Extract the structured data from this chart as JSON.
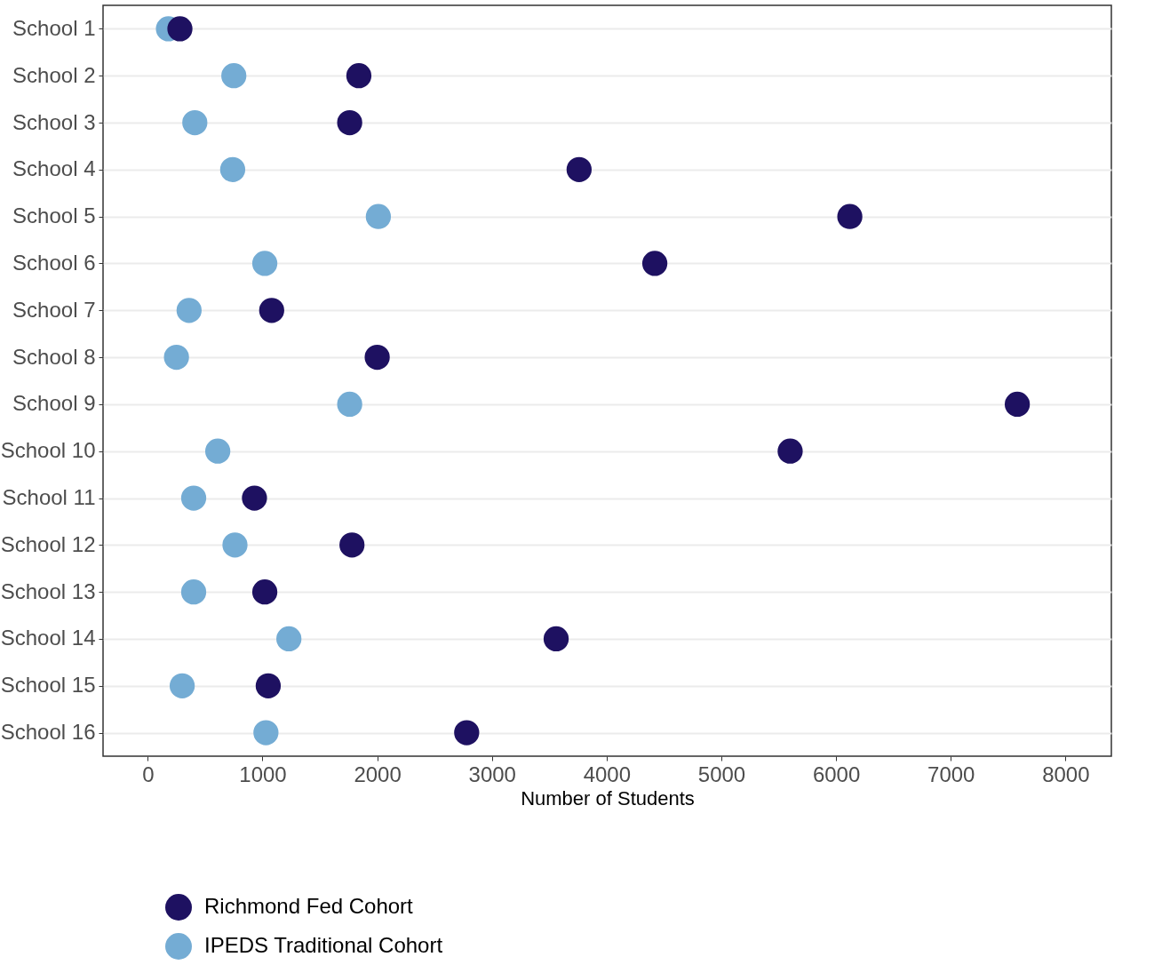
{
  "chart_data": {
    "type": "scatter",
    "orientation": "horizontal",
    "xlabel": "Number of Students",
    "categories": [
      "School 1",
      "School 2",
      "School 3",
      "School 4",
      "School 5",
      "School 6",
      "School 7",
      "School 8",
      "School 9",
      "School 10",
      "School 11",
      "School 12",
      "School 13",
      "School 14",
      "School 15",
      "School 16"
    ],
    "series": [
      {
        "name": "Richmond Fed Cohort",
        "color": "#1e1161",
        "values": [
          280,
          1840,
          1760,
          3760,
          6120,
          4420,
          1080,
          2000,
          7580,
          5600,
          930,
          1780,
          1020,
          3560,
          1050,
          2780
        ]
      },
      {
        "name": "IPEDS Traditional Cohort",
        "color": "#74acd4",
        "values": [
          180,
          750,
          410,
          740,
          2010,
          1020,
          360,
          250,
          1760,
          610,
          400,
          760,
          400,
          1230,
          300,
          1030
        ]
      }
    ],
    "xlim": [
      -390,
      8400
    ],
    "xticks": [
      0,
      {
        "value": 1000,
        "label": "1000"
      },
      {
        "value": 2000,
        "label": "2000"
      },
      {
        "value": 3000,
        "label": "3000"
      },
      {
        "value": 4000,
        "label": "4000"
      },
      {
        "value": 5000,
        "label": "5000"
      },
      {
        "value": 6000,
        "label": "6000"
      },
      {
        "value": 7000,
        "label": "7000"
      },
      {
        "value": 8000,
        "label": "8000"
      }
    ],
    "grid": "y",
    "legend": "bottom left",
    "marker": "circle"
  }
}
